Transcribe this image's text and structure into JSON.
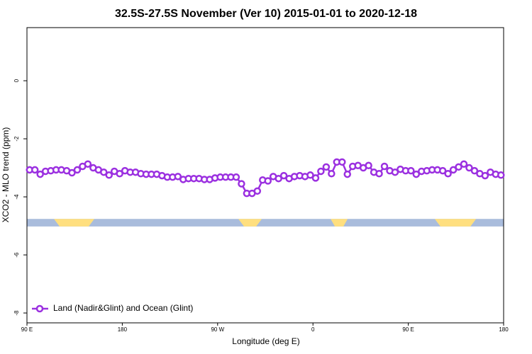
{
  "chart_data": {
    "type": "line",
    "title": "32.5S-27.5S November (Ver 10)   2015-01-01 to 2020-12-18",
    "x_label": "Longitude (deg E)",
    "y_label": "XCO2 - MLO trend (ppm)",
    "xlim": [
      90,
      540
    ],
    "ylim": [
      -8.34,
      1.83
    ],
    "xticks": [
      {
        "value": 90,
        "label": "90 E"
      },
      180,
      {
        "value": 270,
        "label": "90 W"
      },
      {
        "value": 360,
        "label": "0"
      },
      {
        "value": 450,
        "label": "90 E"
      },
      {
        "value": 540,
        "label": "180"
      }
    ],
    "yticks": [
      0,
      -2,
      -4,
      -6,
      -8
    ],
    "legend": "bottom-left",
    "x": [
      92.5,
      97.5,
      102.5,
      107.5,
      112.5,
      117.5,
      122.5,
      127.5,
      132.5,
      137.5,
      142.5,
      147.5,
      152.5,
      157.5,
      162.5,
      167.5,
      172.5,
      177.5,
      182.5,
      187.5,
      192.5,
      197.5,
      202.5,
      207.5,
      212.5,
      217.5,
      222.5,
      227.5,
      232.5,
      237.5,
      242.5,
      247.5,
      252.5,
      257.5,
      262.5,
      267.5,
      272.5,
      277.5,
      282.5,
      287.5,
      292.5,
      297.5,
      302.5,
      307.5,
      312.5,
      317.5,
      322.5,
      327.5,
      332.5,
      337.5,
      342.5,
      347.5,
      352.5,
      357.5,
      362.5,
      367.5,
      372.5,
      377.5,
      382.5,
      387.5,
      392.5,
      397.5,
      402.5,
      407.5,
      412.5,
      417.5,
      422.5,
      427.5,
      432.5,
      437.5,
      442.5,
      447.5,
      452.5,
      457.5,
      462.5,
      467.5,
      472.5,
      477.5,
      482.5,
      487.5,
      492.5,
      497.5,
      502.5,
      507.5,
      512.5,
      517.5,
      522.5,
      527.5,
      532.5,
      537.5
    ],
    "series": [
      {
        "name": "Land (Nadir&Glint) and Ocean (Glint)",
        "color": "#9b30e0",
        "values": [
          -3.07,
          -3.07,
          -3.22,
          -3.12,
          -3.1,
          -3.07,
          -3.07,
          -3.1,
          -3.17,
          -3.07,
          -2.95,
          -2.87,
          -3.0,
          -3.07,
          -3.15,
          -3.25,
          -3.12,
          -3.2,
          -3.1,
          -3.15,
          -3.15,
          -3.2,
          -3.22,
          -3.22,
          -3.22,
          -3.27,
          -3.32,
          -3.32,
          -3.3,
          -3.4,
          -3.37,
          -3.37,
          -3.37,
          -3.4,
          -3.4,
          -3.35,
          -3.32,
          -3.32,
          -3.32,
          -3.32,
          -3.55,
          -3.88,
          -3.88,
          -3.8,
          -3.42,
          -3.45,
          -3.3,
          -3.37,
          -3.27,
          -3.37,
          -3.3,
          -3.27,
          -3.3,
          -3.25,
          -3.35,
          -3.12,
          -2.97,
          -3.2,
          -2.8,
          -2.8,
          -3.22,
          -2.95,
          -2.92,
          -3.0,
          -2.92,
          -3.15,
          -3.2,
          -2.95,
          -3.1,
          -3.15,
          -3.05,
          -3.1,
          -3.1,
          -3.22,
          -3.12,
          -3.1,
          -3.07,
          -3.07,
          -3.1,
          -3.2,
          -3.07,
          -2.97,
          -2.87,
          -3.0,
          -3.1,
          -3.2,
          -3.27,
          -3.15,
          -3.22,
          -3.25
        ]
      }
    ],
    "surface_band": {
      "ylim": [
        -5.02,
        -4.76
      ],
      "ocean_color": "#a9bcdc",
      "land_color": "#ffdf7f",
      "land": [
        [
          115.5,
          153.6
        ],
        [
          289.6,
          311.7
        ],
        [
          376.7,
          392.7
        ],
        [
          475,
          514
        ]
      ]
    }
  }
}
